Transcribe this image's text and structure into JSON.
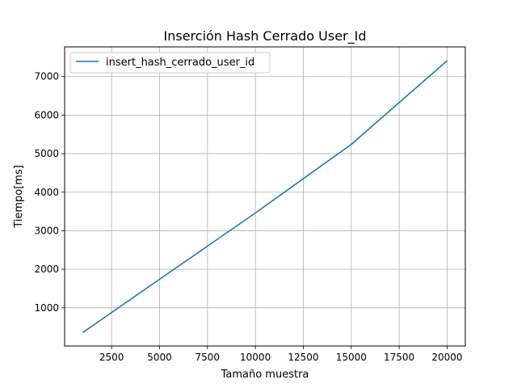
{
  "chart_data": {
    "type": "line",
    "title": "Inserción Hash Cerrado User_Id",
    "xlabel": "Tamaño muestra",
    "ylabel": "Tiempo[ms]",
    "xlim": [
      50,
      20950
    ],
    "ylim": [
      10,
      7770
    ],
    "xticks": [
      2500,
      5000,
      7500,
      10000,
      12500,
      15000,
      17500,
      20000
    ],
    "yticks": [
      1000,
      2000,
      3000,
      4000,
      5000,
      6000,
      7000
    ],
    "grid": true,
    "legend_position": "top-left",
    "series": [
      {
        "name": "insert_hash_cerrado_user_id",
        "color": "#1f77b4",
        "x": [
          1000,
          5000,
          10000,
          15000,
          20000
        ],
        "y": [
          360,
          1740,
          3460,
          5240,
          7410
        ]
      }
    ]
  }
}
